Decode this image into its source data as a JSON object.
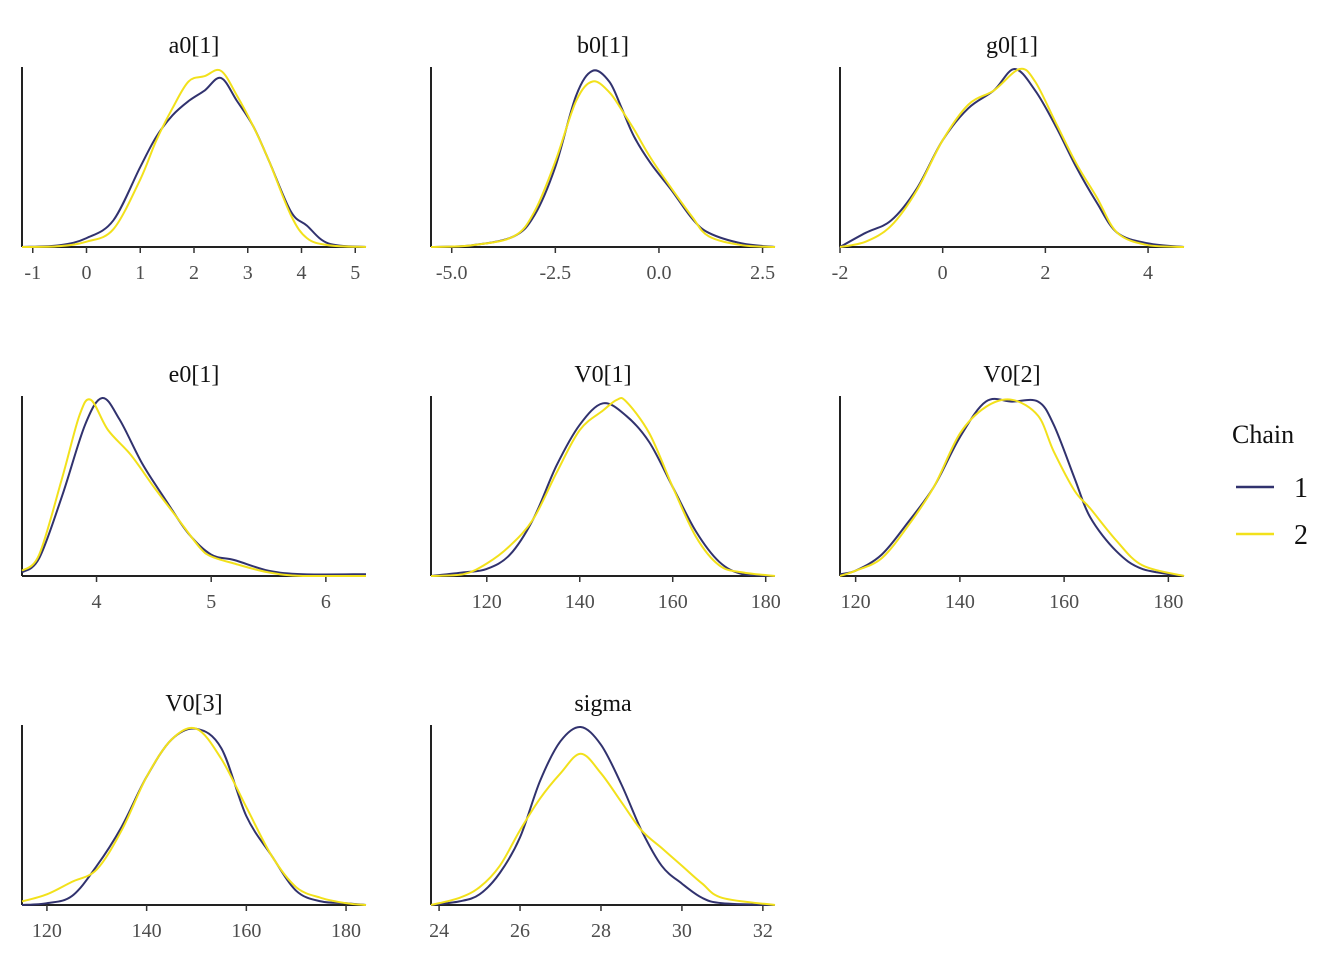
{
  "legend": {
    "title": "Chain",
    "items": [
      {
        "label": "1",
        "color": "#31326e"
      },
      {
        "label": "2",
        "color": "#f2e11b"
      }
    ]
  },
  "chart_data": [
    {
      "type": "line",
      "title": "a0[1]",
      "xlim": [
        -1.2,
        5.2
      ],
      "ticks": [
        -1,
        0,
        1,
        2,
        3,
        4,
        5
      ],
      "series": [
        {
          "name": "1",
          "x": [
            -1.2,
            -0.5,
            0,
            0.5,
            1,
            1.3,
            1.6,
            1.9,
            2.2,
            2.5,
            2.8,
            3.1,
            3.4,
            3.8,
            4.1,
            4.5,
            5.2
          ],
          "y": [
            0,
            0.01,
            0.05,
            0.15,
            0.45,
            0.62,
            0.74,
            0.82,
            0.88,
            0.95,
            0.82,
            0.68,
            0.48,
            0.2,
            0.12,
            0.02,
            0
          ]
        },
        {
          "name": "2",
          "x": [
            -1.2,
            -0.5,
            0,
            0.5,
            1,
            1.3,
            1.6,
            1.9,
            2.2,
            2.5,
            2.8,
            3.1,
            3.4,
            3.8,
            4.1,
            4.5,
            5.2
          ],
          "y": [
            0,
            0.005,
            0.03,
            0.1,
            0.38,
            0.6,
            0.78,
            0.93,
            0.96,
            0.99,
            0.85,
            0.68,
            0.48,
            0.18,
            0.05,
            0.01,
            0
          ]
        }
      ]
    },
    {
      "type": "line",
      "title": "b0[1]",
      "xlim": [
        -5.5,
        2.8
      ],
      "ticks": [
        -5.0,
        -2.5,
        0.0,
        2.5
      ],
      "tick_labels": [
        "-5.0",
        "-2.5",
        "0.0",
        "2.5"
      ],
      "series": [
        {
          "name": "1",
          "x": [
            -5.5,
            -4.5,
            -3.5,
            -3,
            -2.5,
            -2,
            -1.6,
            -1.2,
            -0.9,
            -0.6,
            -0.2,
            0.3,
            0.8,
            1.2,
            2,
            2.8
          ],
          "y": [
            0,
            0.01,
            0.06,
            0.18,
            0.45,
            0.85,
            0.99,
            0.93,
            0.78,
            0.62,
            0.47,
            0.32,
            0.16,
            0.08,
            0.02,
            0
          ]
        },
        {
          "name": "2",
          "x": [
            -5.5,
            -4.5,
            -3.5,
            -3,
            -2.5,
            -2,
            -1.6,
            -1.2,
            -0.9,
            -0.6,
            -0.2,
            0.3,
            0.8,
            1.2,
            2,
            2.8
          ],
          "y": [
            0,
            0.01,
            0.06,
            0.2,
            0.48,
            0.82,
            0.93,
            0.87,
            0.77,
            0.66,
            0.5,
            0.33,
            0.17,
            0.06,
            0.01,
            0
          ]
        }
      ]
    },
    {
      "type": "line",
      "title": "g0[1]",
      "xlim": [
        -2,
        4.7
      ],
      "ticks": [
        -2,
        0,
        2,
        4
      ],
      "series": [
        {
          "name": "1",
          "x": [
            -2,
            -1.5,
            -1,
            -0.5,
            0,
            0.5,
            1,
            1.4,
            1.8,
            2.2,
            2.6,
            3,
            3.4,
            4,
            4.7
          ],
          "y": [
            0,
            0.08,
            0.15,
            0.33,
            0.6,
            0.78,
            0.88,
            1.0,
            0.88,
            0.68,
            0.45,
            0.25,
            0.08,
            0.02,
            0
          ]
        },
        {
          "name": "2",
          "x": [
            -2,
            -1.5,
            -1,
            -0.5,
            0,
            0.5,
            1,
            1.5,
            1.8,
            2.2,
            2.6,
            3,
            3.4,
            4,
            4.7
          ],
          "y": [
            0,
            0.03,
            0.12,
            0.32,
            0.6,
            0.8,
            0.88,
            1.0,
            0.93,
            0.7,
            0.47,
            0.28,
            0.08,
            0.01,
            0
          ]
        }
      ]
    },
    {
      "type": "line",
      "title": "e0[1]",
      "xlim": [
        3.35,
        6.35
      ],
      "ticks": [
        4,
        5,
        6
      ],
      "series": [
        {
          "name": "1",
          "x": [
            3.35,
            3.5,
            3.7,
            3.9,
            4.05,
            4.2,
            4.4,
            4.6,
            4.8,
            5,
            5.2,
            5.5,
            5.8,
            6.35
          ],
          "y": [
            0.02,
            0.1,
            0.45,
            0.85,
            1.0,
            0.88,
            0.63,
            0.43,
            0.24,
            0.12,
            0.09,
            0.03,
            0.01,
            0.01
          ]
        },
        {
          "name": "2",
          "x": [
            3.35,
            3.5,
            3.7,
            3.85,
            3.95,
            4.1,
            4.3,
            4.5,
            4.7,
            4.9,
            5,
            5.2,
            5.5,
            5.8,
            6.35
          ],
          "y": [
            0.03,
            0.12,
            0.55,
            0.9,
            0.99,
            0.82,
            0.68,
            0.5,
            0.33,
            0.16,
            0.11,
            0.07,
            0.02,
            0,
            0
          ]
        }
      ]
    },
    {
      "type": "line",
      "title": "V0[1]",
      "xlim": [
        108,
        182
      ],
      "ticks": [
        120,
        140,
        160,
        180
      ],
      "series": [
        {
          "name": "1",
          "x": [
            108,
            115,
            120,
            125,
            130,
            135,
            140,
            145,
            150,
            155,
            160,
            165,
            170,
            175,
            182
          ],
          "y": [
            0,
            0.02,
            0.04,
            0.12,
            0.32,
            0.62,
            0.85,
            0.97,
            0.9,
            0.75,
            0.5,
            0.25,
            0.08,
            0.01,
            0
          ]
        },
        {
          "name": "2",
          "x": [
            108,
            115,
            120,
            125,
            130,
            135,
            140,
            145,
            148,
            150,
            155,
            160,
            165,
            170,
            175,
            182
          ],
          "y": [
            0,
            0.01,
            0.07,
            0.17,
            0.32,
            0.58,
            0.82,
            0.93,
            0.99,
            0.98,
            0.8,
            0.5,
            0.22,
            0.06,
            0.02,
            0
          ]
        }
      ]
    },
    {
      "type": "line",
      "title": "V0[2]",
      "xlim": [
        117,
        183
      ],
      "ticks": [
        120,
        140,
        160,
        180
      ],
      "series": [
        {
          "name": "1",
          "x": [
            117,
            120,
            125,
            130,
            135,
            140,
            145,
            150,
            155,
            158,
            162,
            165,
            170,
            175,
            183
          ],
          "y": [
            0.01,
            0.03,
            0.12,
            0.3,
            0.5,
            0.78,
            0.98,
            0.98,
            0.98,
            0.85,
            0.55,
            0.33,
            0.14,
            0.04,
            0
          ]
        },
        {
          "name": "2",
          "x": [
            117,
            120,
            125,
            130,
            135,
            140,
            145,
            150,
            155,
            158,
            162,
            165,
            170,
            175,
            183
          ],
          "y": [
            0,
            0.03,
            0.1,
            0.28,
            0.5,
            0.8,
            0.95,
            0.99,
            0.9,
            0.7,
            0.48,
            0.38,
            0.2,
            0.06,
            0
          ]
        }
      ]
    },
    {
      "type": "line",
      "title": "V0[3]",
      "xlim": [
        115,
        184
      ],
      "ticks": [
        120,
        140,
        160,
        180
      ],
      "series": [
        {
          "name": "1",
          "x": [
            115,
            120,
            125,
            130,
            135,
            140,
            145,
            150,
            155,
            160,
            165,
            170,
            175,
            180,
            184
          ],
          "y": [
            0,
            0.01,
            0.05,
            0.22,
            0.44,
            0.72,
            0.93,
            0.99,
            0.88,
            0.5,
            0.28,
            0.08,
            0.02,
            0.01,
            0
          ]
        },
        {
          "name": "2",
          "x": [
            115,
            120,
            125,
            130,
            135,
            140,
            145,
            150,
            155,
            160,
            165,
            170,
            175,
            180,
            184
          ],
          "y": [
            0.02,
            0.06,
            0.13,
            0.2,
            0.42,
            0.72,
            0.93,
            0.99,
            0.82,
            0.55,
            0.28,
            0.1,
            0.04,
            0.01,
            0
          ]
        }
      ]
    },
    {
      "type": "line",
      "title": "sigma",
      "xlim": [
        23.8,
        32.3
      ],
      "ticks": [
        24,
        26,
        28,
        30,
        32
      ],
      "series": [
        {
          "name": "1",
          "x": [
            23.8,
            24.5,
            25,
            25.5,
            26,
            26.5,
            27,
            27.5,
            28,
            28.5,
            29,
            29.5,
            30,
            30.5,
            31,
            32.3
          ],
          "y": [
            0,
            0.02,
            0.06,
            0.18,
            0.38,
            0.7,
            0.92,
            1.0,
            0.9,
            0.68,
            0.42,
            0.22,
            0.12,
            0.04,
            0.01,
            0
          ]
        },
        {
          "name": "2",
          "x": [
            23.8,
            24.5,
            25,
            25.5,
            26,
            26.5,
            27,
            27.5,
            28,
            28.5,
            29,
            29.5,
            30,
            30.5,
            31,
            32.3
          ],
          "y": [
            0,
            0.04,
            0.1,
            0.22,
            0.42,
            0.6,
            0.74,
            0.85,
            0.74,
            0.58,
            0.42,
            0.32,
            0.22,
            0.12,
            0.04,
            0
          ]
        }
      ]
    }
  ]
}
